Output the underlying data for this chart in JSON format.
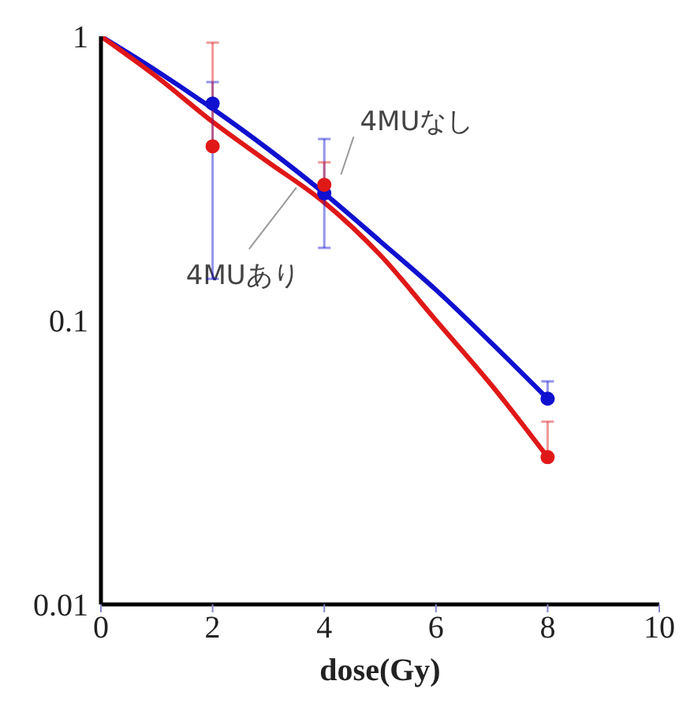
{
  "chart_data": {
    "type": "line",
    "xlabel": "dose(Gy)",
    "xlim": [
      0,
      10
    ],
    "xticks": [
      0,
      2,
      4,
      6,
      8,
      10
    ],
    "ylim": [
      0.01,
      1
    ],
    "yticks": [
      0.01,
      0.1,
      1
    ],
    "log": "y",
    "grid": false,
    "legend": false,
    "marker": "none",
    "line_style": "solid",
    "series": [
      {
        "name": "4MUなし",
        "color": "#1010d0",
        "x": [
          0,
          1,
          2,
          3,
          4,
          5,
          6,
          7,
          8
        ],
        "values": [
          1,
          0.755,
          0.556,
          0.4,
          0.28,
          0.19,
          0.128,
          0.083,
          0.053
        ]
      },
      {
        "name": "4MUあり",
        "color": "#e01818",
        "x": [
          0,
          1,
          2,
          3,
          4,
          5,
          6,
          7,
          8
        ],
        "values": [
          1,
          0.72,
          0.5,
          0.36,
          0.26,
          0.17,
          0.1,
          0.059,
          0.033
        ]
      },
      {
        "type": "scatter",
        "color": "#1010d0",
        "marker": "circle",
        "x": [
          2,
          4,
          8
        ],
        "values": [
          0.58,
          0.28,
          0.053
        ],
        "errors": [
          [
            0.14,
            0.69
          ],
          [
            0.18,
            0.435
          ],
          [
            0.053,
            0.061
          ]
        ]
      },
      {
        "type": "scatter",
        "color": "#e01818",
        "marker": "circle",
        "x": [
          2,
          4,
          8
        ],
        "values": [
          0.41,
          0.3,
          0.033
        ],
        "errors": [
          [
            0.41,
            0.95
          ],
          [
            0.3,
            0.36
          ],
          [
            0.033,
            0.044
          ]
        ]
      }
    ]
  }
}
